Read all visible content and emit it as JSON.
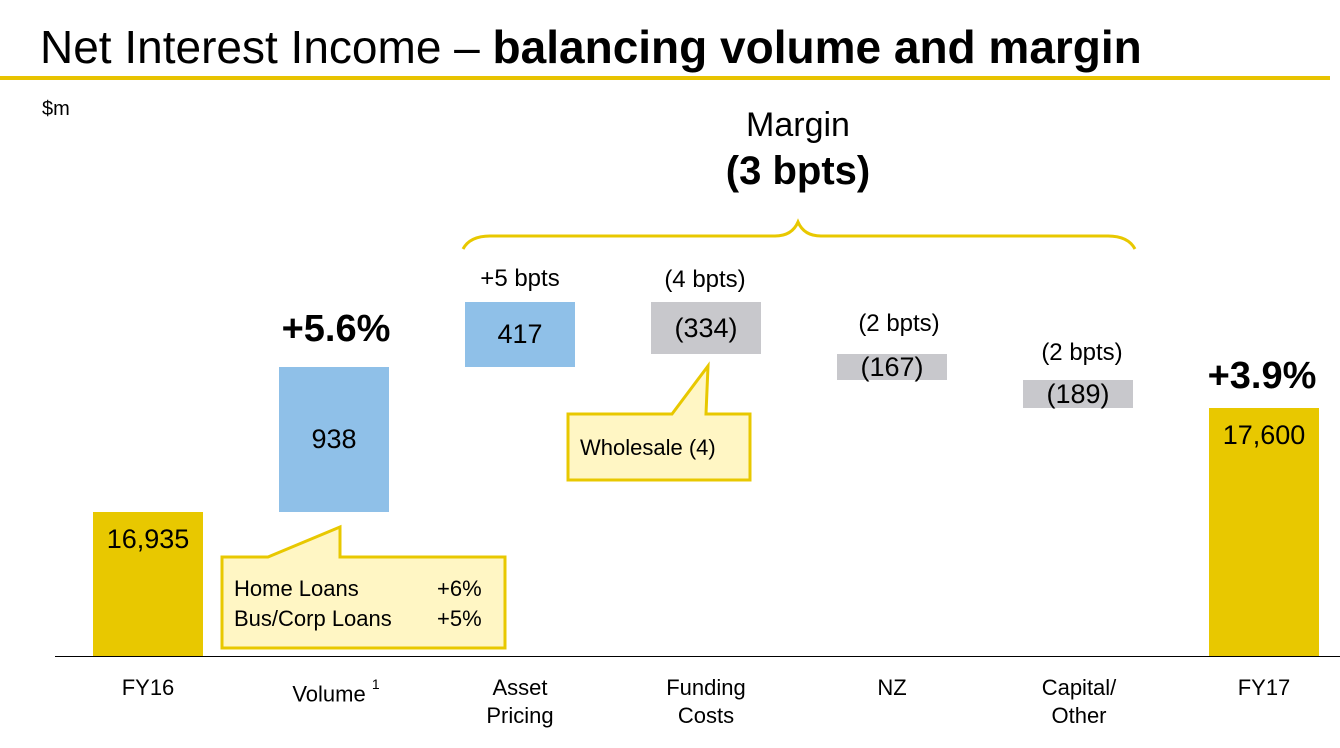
{
  "title": {
    "regular": "Net Interest Income – ",
    "bold": "balancing volume and margin"
  },
  "unit_label": "$m",
  "margin": {
    "label": "Margin",
    "value": "(3 bpts)"
  },
  "colors": {
    "accent": "#e8c800",
    "increase": "#8fc0e8",
    "decrease": "#c8c8cc"
  },
  "chart_data": {
    "type": "bar",
    "subtype": "waterfall",
    "categories": [
      "FY16",
      "Volume",
      "Asset Pricing",
      "Funding Costs",
      "NZ",
      "Capital/ Other",
      "FY17"
    ],
    "values": [
      16935,
      938,
      417,
      -334,
      -167,
      -189,
      17600
    ],
    "value_labels": [
      "16,935",
      "938",
      "417",
      "(334)",
      "(167)",
      "(189)",
      "17,600"
    ],
    "ylabel": "$m",
    "growth_labels": {
      "Volume": "+5.6%",
      "FY17": "+3.9%"
    },
    "bpts_labels": {
      "Asset Pricing": "+5 bpts",
      "Funding Costs": "(4 bpts)",
      "NZ": "(2 bpts)",
      "Capital/ Other": "(2 bpts)"
    }
  },
  "xlabels": {
    "fy16": "FY16",
    "volume": "Volume",
    "volume_footnote": "1",
    "asset_pricing": "Asset\nPricing",
    "funding_costs": "Funding\nCosts",
    "nz": "NZ",
    "capital_other": "Capital/\nOther",
    "fy17": "FY17"
  },
  "callouts": {
    "wholesale": "Wholesale (4)",
    "home_loans_label": "Home Loans",
    "home_loans_value": "+6%",
    "bus_corp_label": "Bus/Corp Loans",
    "bus_corp_value": "+5%"
  }
}
